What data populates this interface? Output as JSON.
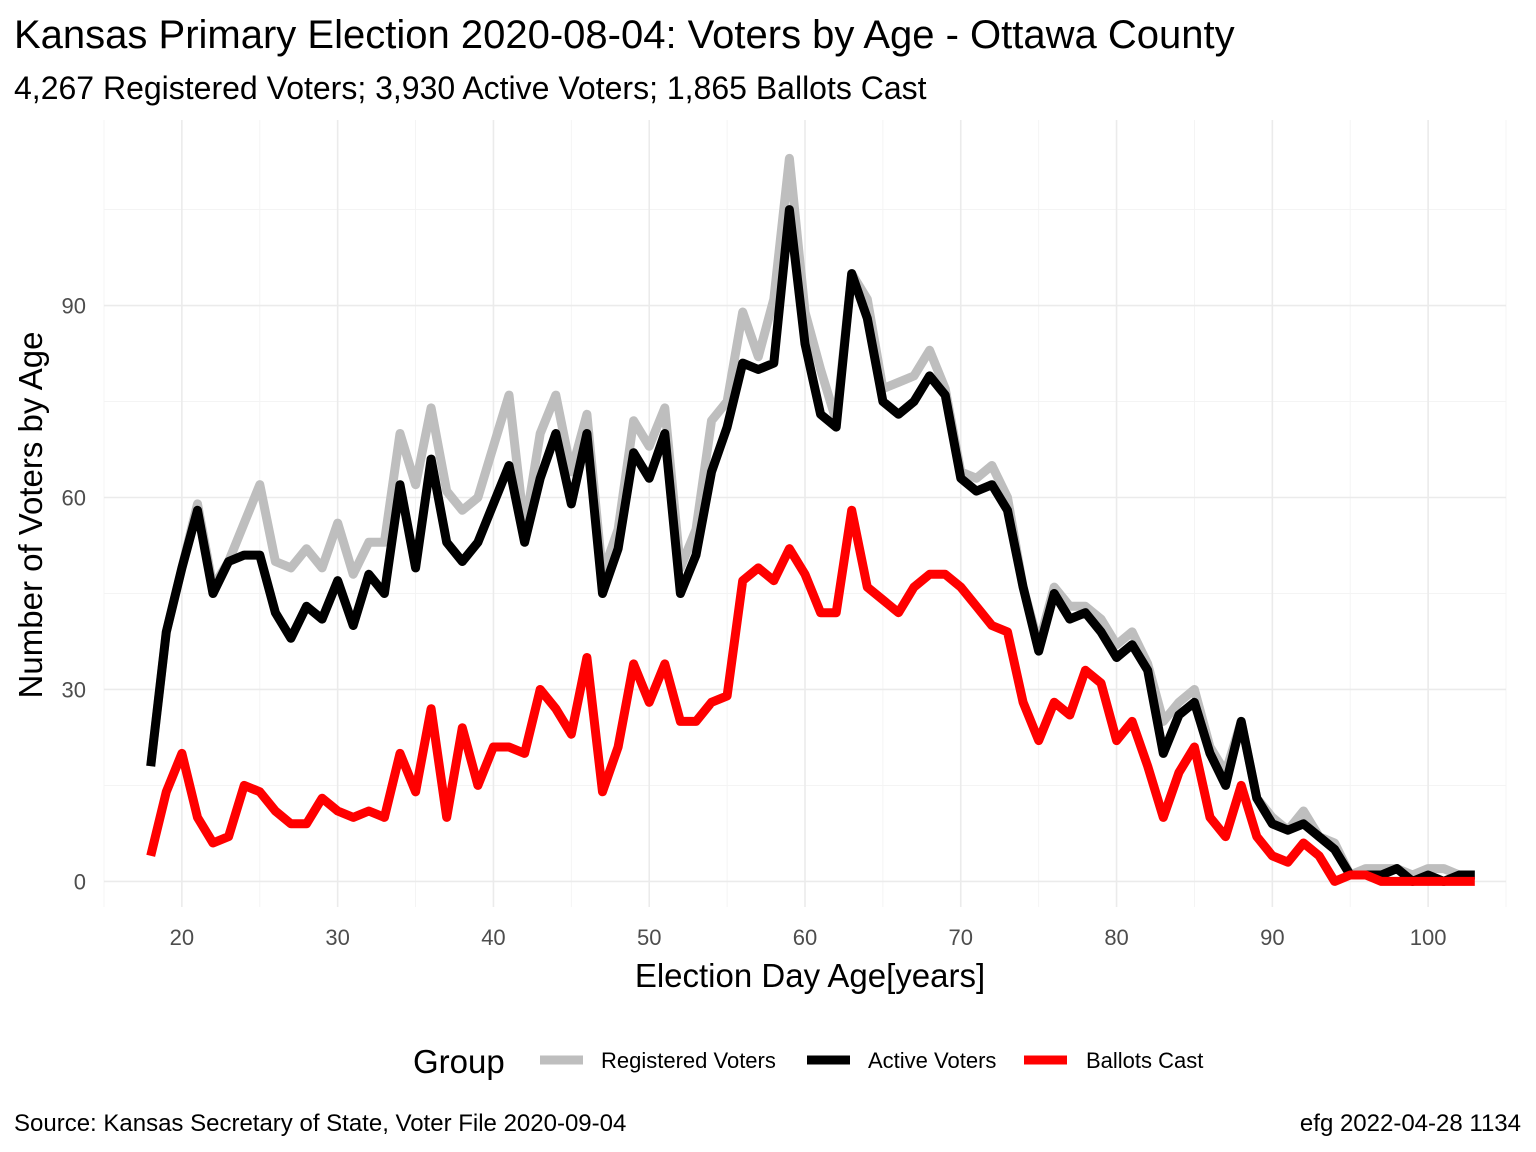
{
  "chart_data": {
    "type": "line",
    "title": "Kansas Primary Election 2020-08-04:  Voters by Age - Ottawa County",
    "subtitle": "4,267 Registered Voters; 3,930 Active Voters; 1,865 Ballots Cast",
    "xlabel": "Election Day Age[years]",
    "ylabel": "Number of Voters by Age",
    "xlim": [
      15,
      105
    ],
    "ylim": [
      -4,
      119
    ],
    "x_ticks": [
      20,
      30,
      40,
      50,
      60,
      70,
      80,
      90,
      100
    ],
    "y_ticks": [
      0,
      30,
      60,
      90
    ],
    "grid": true,
    "legend_title": "Group",
    "legend_position": "bottom",
    "x": [
      18,
      19,
      20,
      21,
      22,
      23,
      24,
      25,
      26,
      27,
      28,
      29,
      30,
      31,
      32,
      33,
      34,
      35,
      36,
      37,
      38,
      39,
      40,
      41,
      42,
      43,
      44,
      45,
      46,
      47,
      48,
      49,
      50,
      51,
      52,
      53,
      54,
      55,
      56,
      57,
      58,
      59,
      60,
      61,
      62,
      63,
      64,
      65,
      66,
      67,
      68,
      69,
      70,
      71,
      72,
      73,
      74,
      75,
      76,
      77,
      78,
      79,
      80,
      81,
      82,
      83,
      84,
      85,
      86,
      87,
      88,
      89,
      90,
      91,
      92,
      93,
      94,
      95,
      96,
      97,
      98,
      99,
      100,
      101,
      102,
      103
    ],
    "series": [
      {
        "name": "Registered Voters",
        "color": "#bebebe",
        "values": [
          18,
          39,
          49,
          59,
          46,
          50,
          56,
          62,
          50,
          49,
          52,
          49,
          56,
          48,
          53,
          53,
          70,
          62,
          74,
          61,
          58,
          60,
          68,
          76,
          55,
          70,
          76,
          64,
          73,
          48,
          55,
          72,
          68,
          74,
          49,
          55,
          72,
          75,
          89,
          82,
          91,
          113,
          89,
          80,
          72,
          95,
          91,
          77,
          78,
          79,
          83,
          77,
          64,
          63,
          65,
          60,
          46,
          37,
          46,
          43,
          43,
          41,
          37,
          39,
          34,
          25,
          28,
          30,
          21,
          17,
          25,
          13,
          10,
          8,
          11,
          7,
          6,
          1,
          2,
          2,
          2,
          1,
          2,
          2,
          1,
          1
        ]
      },
      {
        "name": "Active Voters",
        "color": "#000000",
        "values": [
          18,
          39,
          49,
          58,
          45,
          50,
          51,
          51,
          42,
          38,
          43,
          41,
          47,
          40,
          48,
          45,
          62,
          49,
          66,
          53,
          50,
          53,
          59,
          65,
          53,
          63,
          70,
          59,
          70,
          45,
          52,
          67,
          63,
          70,
          45,
          51,
          64,
          71,
          81,
          80,
          81,
          105,
          84,
          73,
          71,
          95,
          88,
          75,
          73,
          75,
          79,
          76,
          63,
          61,
          62,
          58,
          46,
          36,
          45,
          41,
          42,
          39,
          35,
          37,
          33,
          20,
          26,
          28,
          20,
          15,
          25,
          13,
          9,
          8,
          9,
          7,
          5,
          1,
          1,
          1,
          2,
          0,
          1,
          0,
          1,
          1
        ]
      },
      {
        "name": "Ballots Cast",
        "color": "#ff0000",
        "values": [
          4,
          14,
          20,
          10,
          6,
          7,
          15,
          14,
          11,
          9,
          9,
          13,
          11,
          10,
          11,
          10,
          20,
          14,
          27,
          10,
          24,
          15,
          21,
          21,
          20,
          30,
          27,
          23,
          35,
          14,
          21,
          34,
          28,
          34,
          25,
          25,
          28,
          29,
          47,
          49,
          47,
          52,
          48,
          42,
          42,
          58,
          46,
          44,
          42,
          46,
          48,
          48,
          46,
          43,
          40,
          39,
          28,
          22,
          28,
          26,
          33,
          31,
          22,
          25,
          18,
          10,
          17,
          21,
          10,
          7,
          15,
          7,
          4,
          3,
          6,
          4,
          0,
          1,
          1,
          0,
          0,
          0,
          0,
          0,
          0,
          0
        ]
      }
    ],
    "caption_left": "Source:  Kansas Secretary of State, Voter File  2020-09-04",
    "caption_right": "efg 2022-04-28 1134"
  }
}
